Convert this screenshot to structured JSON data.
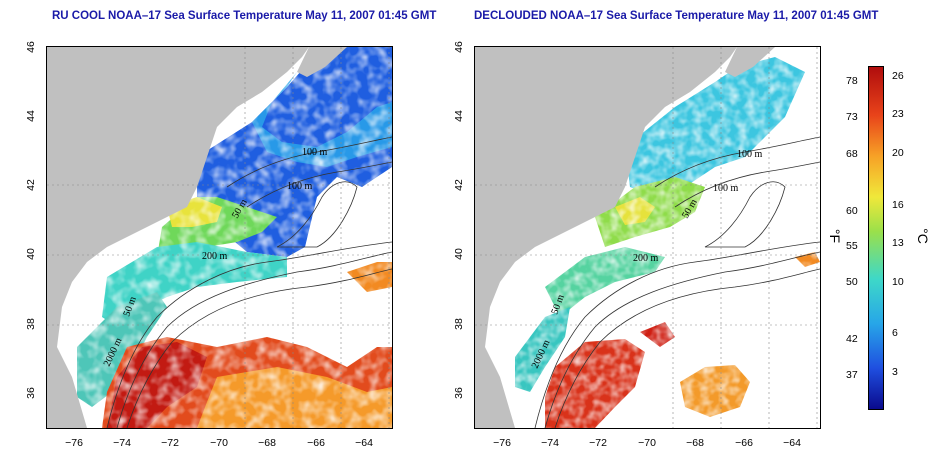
{
  "maps": [
    {
      "title": "RU COOL NOAA–17 Sea Surface Temperature May 11, 2007 01:45 GMT",
      "contour_labels": [
        "100 m",
        "100 m",
        "50 m",
        "200 m",
        "50 m",
        "2000 m"
      ]
    },
    {
      "title": "DECLOUDED NOAA–17 Sea Surface Temperature May 11, 2007 01:45 GMT",
      "contour_labels": [
        "100 m",
        "100 m",
        "50 m",
        "200 m",
        "50 m",
        "2000 m"
      ]
    }
  ],
  "axes": {
    "y_ticks": [
      "46",
      "44",
      "42",
      "40",
      "38",
      "36"
    ],
    "x_ticks": [
      "−76",
      "−74",
      "−72",
      "−70",
      "−68",
      "−66",
      "−64"
    ]
  },
  "colorbar": {
    "fahrenheit_ticks": [
      "78",
      "73",
      "68",
      "60",
      "55",
      "50",
      "42",
      "37"
    ],
    "celsius_ticks": [
      "26",
      "23",
      "20",
      "16",
      "13",
      "10",
      "6",
      "3"
    ],
    "fahrenheit_unit": "°F",
    "celsius_unit": "°C",
    "colors": [
      "#0a0a8c",
      "#1f4fe0",
      "#27a6e8",
      "#3ed8c8",
      "#9be04a",
      "#f0e83a",
      "#f7a126",
      "#e8431a",
      "#b00d0d"
    ]
  },
  "colors": {
    "land": "#c0c0c0",
    "cloud": "#ffffff",
    "title": "#1a1aa8"
  }
}
